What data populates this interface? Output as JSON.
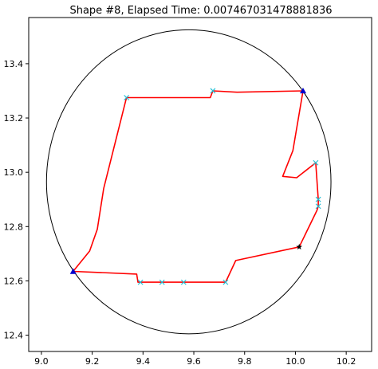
{
  "chart_data": {
    "type": "scatter",
    "title": "Shape #8, Elapsed Time: 0.007467031478881836",
    "xlabel": "",
    "ylabel": "",
    "xlim": [
      8.95,
      10.3
    ],
    "ylim": [
      12.34,
      13.57
    ],
    "xticks": [
      9.0,
      9.2,
      9.4,
      9.6,
      9.8,
      10.0,
      10.2
    ],
    "xtick_labels": [
      "9.0",
      "9.2",
      "9.4",
      "9.6",
      "9.8",
      "10.0",
      "10.2"
    ],
    "yticks": [
      12.4,
      12.6,
      12.8,
      13.0,
      13.2,
      13.4
    ],
    "ytick_labels": [
      "12.4",
      "12.6",
      "12.8",
      "13.0",
      "13.2",
      "13.4"
    ],
    "grid": false,
    "circle": {
      "center": [
        9.58,
        12.965
      ],
      "radius": 0.56,
      "color": "#000000"
    },
    "path": {
      "color": "#ff0000",
      "x": [
        9.125,
        9.19,
        9.22,
        9.245,
        9.335,
        9.665,
        9.675,
        9.77,
        10.03,
        9.99,
        9.95,
        10.005,
        10.08,
        10.09,
        10.09,
        10.085,
        10.015,
        9.765,
        9.725,
        9.38,
        9.375,
        9.125
      ],
      "y": [
        12.635,
        12.71,
        12.79,
        12.94,
        13.275,
        13.275,
        13.3,
        13.295,
        13.3,
        13.08,
        12.985,
        12.98,
        13.035,
        12.9,
        12.875,
        12.86,
        12.725,
        12.675,
        12.595,
        12.595,
        12.625,
        12.635
      ]
    },
    "x_markers": {
      "color": "#22bfd4",
      "x": [
        9.335,
        9.675,
        10.08,
        10.09,
        10.09,
        9.39,
        9.475,
        9.56,
        9.725
      ],
      "y": [
        13.275,
        13.3,
        13.035,
        12.9,
        12.875,
        12.595,
        12.595,
        12.595,
        12.595
      ]
    },
    "triangle_markers": {
      "color": "#0000cc",
      "x": [
        9.125,
        10.03
      ],
      "y": [
        12.635,
        13.3
      ]
    },
    "star_markers": {
      "color": "#000000",
      "x": [
        10.015
      ],
      "y": [
        12.725
      ]
    }
  }
}
